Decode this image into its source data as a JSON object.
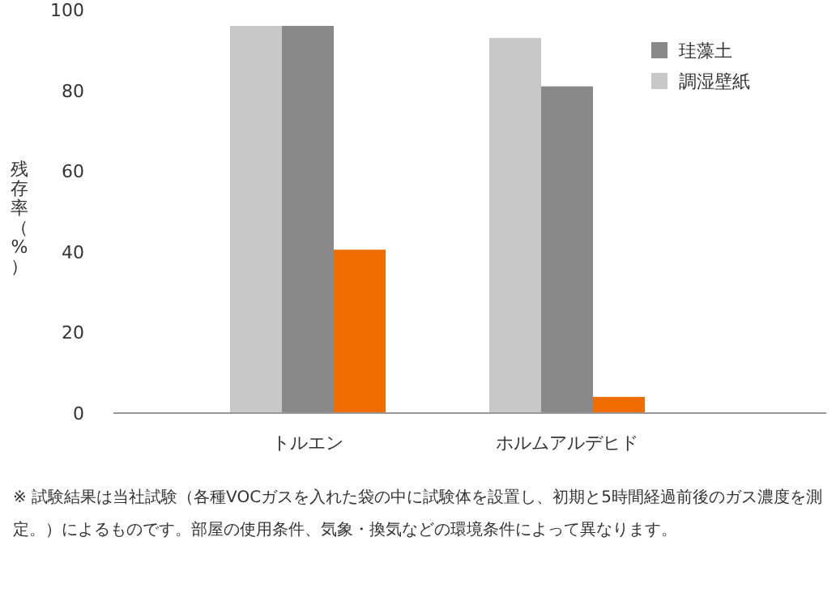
{
  "chart_data": {
    "type": "bar",
    "ylabel": "残存率（%）",
    "categories": [
      "トルエン",
      "ホルムアルデヒド"
    ],
    "series": [
      {
        "name": "調湿壁紙",
        "color": "#c8c8c8",
        "values": [
          96,
          93
        ]
      },
      {
        "name": "珪藻土",
        "color": "#898989",
        "values": [
          96,
          81
        ]
      },
      {
        "color": "#ee6c00",
        "values": [
          40.5,
          4
        ]
      }
    ],
    "ylim": [
      0,
      100
    ],
    "yticks": [
      0,
      20,
      40,
      60,
      80,
      100
    ],
    "grid": false,
    "legend": "top right",
    "annotations": [
      "※ 試験結果は当社試験（各種VOCガスを入れた袋の中に試験体を設置し、初期と5時間経過前後のガス濃度を測定。）によるものです。部屋の使用条件、気象・換気などの環境条件によって異なります。"
    ]
  }
}
